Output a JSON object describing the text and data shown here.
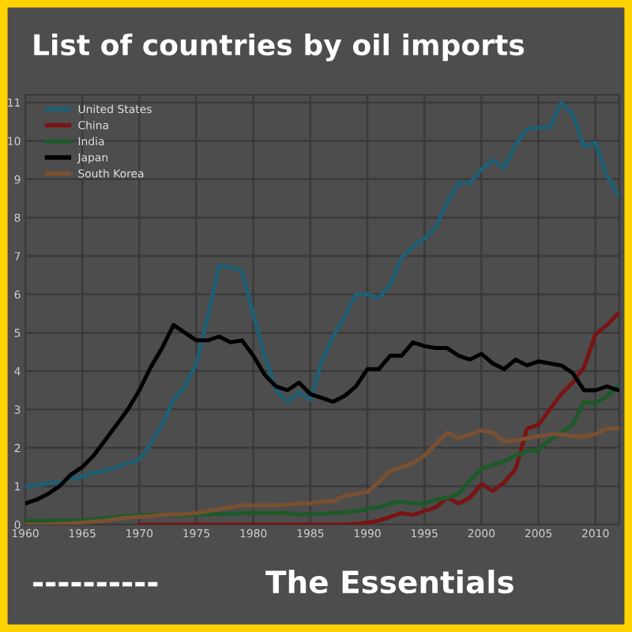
{
  "chart_data": {
    "type": "line",
    "annotations": [
      "List of countries by oil imports",
      "----------",
      "The Essentials"
    ],
    "x": [
      1960,
      1961,
      1962,
      1963,
      1964,
      1965,
      1966,
      1967,
      1968,
      1969,
      1970,
      1971,
      1972,
      1973,
      1974,
      1975,
      1976,
      1977,
      1978,
      1979,
      1980,
      1981,
      1982,
      1983,
      1984,
      1985,
      1986,
      1987,
      1988,
      1989,
      1990,
      1991,
      1992,
      1993,
      1994,
      1995,
      1996,
      1997,
      1998,
      1999,
      2000,
      2001,
      2002,
      2003,
      2004,
      2005,
      2006,
      2007,
      2008,
      2009,
      2010,
      2011,
      2012
    ],
    "series": [
      {
        "name": "United States",
        "color": "#1f5f74",
        "values": [
          1.0,
          1.02,
          1.08,
          1.1,
          1.2,
          1.25,
          1.35,
          1.4,
          1.5,
          1.6,
          1.7,
          2.1,
          2.6,
          3.25,
          3.6,
          4.2,
          5.4,
          6.75,
          6.7,
          6.6,
          5.5,
          4.4,
          3.5,
          3.2,
          3.45,
          3.25,
          4.25,
          4.9,
          5.4,
          6.0,
          6.0,
          5.9,
          6.25,
          6.95,
          7.25,
          7.45,
          7.75,
          8.4,
          8.9,
          8.9,
          9.25,
          9.5,
          9.3,
          9.9,
          10.3,
          10.35,
          10.35,
          11.0,
          10.7,
          9.85,
          9.95,
          9.1,
          8.6
        ]
      },
      {
        "name": "China",
        "color": "#7a1414",
        "values": [
          null,
          null,
          null,
          null,
          null,
          null,
          null,
          null,
          null,
          null,
          0,
          0,
          0,
          0,
          0,
          0,
          0,
          0,
          0,
          0,
          0,
          0,
          0,
          0,
          0,
          0,
          0,
          0,
          0,
          0.02,
          0.05,
          0.1,
          0.2,
          0.3,
          0.25,
          0.35,
          0.45,
          0.7,
          0.55,
          0.7,
          1.06,
          0.87,
          1.1,
          1.45,
          2.5,
          2.6,
          3.0,
          3.4,
          3.7,
          4.1,
          4.95,
          5.2,
          5.5
        ]
      },
      {
        "name": "India",
        "color": "#1d5a2a",
        "values": [
          0.1,
          0.1,
          0.1,
          0.11,
          0.11,
          0.12,
          0.14,
          0.17,
          0.2,
          0.22,
          0.25,
          0.25,
          0.25,
          0.25,
          0.25,
          0.25,
          0.27,
          0.27,
          0.28,
          0.3,
          0.3,
          0.3,
          0.3,
          0.3,
          0.25,
          0.28,
          0.28,
          0.3,
          0.32,
          0.35,
          0.4,
          0.45,
          0.55,
          0.6,
          0.55,
          0.55,
          0.65,
          0.7,
          0.8,
          1.15,
          1.45,
          1.55,
          1.65,
          1.8,
          1.9,
          1.95,
          2.2,
          2.4,
          2.6,
          3.2,
          3.15,
          3.35,
          3.6
        ]
      },
      {
        "name": "Japan",
        "color": "#000000",
        "values": [
          0.55,
          0.65,
          0.8,
          1.0,
          1.3,
          1.5,
          1.8,
          2.2,
          2.6,
          3.0,
          3.5,
          4.1,
          4.6,
          5.2,
          5.0,
          4.8,
          4.8,
          4.9,
          4.75,
          4.8,
          4.4,
          3.9,
          3.6,
          3.5,
          3.7,
          3.4,
          3.3,
          3.2,
          3.35,
          3.6,
          4.05,
          4.05,
          4.4,
          4.4,
          4.75,
          4.65,
          4.6,
          4.6,
          4.4,
          4.3,
          4.45,
          4.2,
          4.05,
          4.3,
          4.15,
          4.25,
          4.2,
          4.15,
          3.95,
          3.5,
          3.5,
          3.6,
          3.5
        ]
      },
      {
        "name": "South Korea",
        "color": "#7a5030",
        "values": [
          0,
          0,
          0,
          0.02,
          0.03,
          0.05,
          0.08,
          0.1,
          0.15,
          0.18,
          0.2,
          0.22,
          0.25,
          0.27,
          0.28,
          0.3,
          0.35,
          0.4,
          0.45,
          0.5,
          0.5,
          0.5,
          0.5,
          0.52,
          0.55,
          0.55,
          0.6,
          0.6,
          0.75,
          0.8,
          0.85,
          1.1,
          1.4,
          1.5,
          1.6,
          1.8,
          2.1,
          2.4,
          2.25,
          2.35,
          2.45,
          2.4,
          2.15,
          2.2,
          2.25,
          2.3,
          2.35,
          2.35,
          2.3,
          2.3,
          2.35,
          2.5,
          2.5
        ]
      }
    ],
    "xlim": [
      1960,
      2012.1
    ],
    "xticks": [
      1960,
      1965,
      1970,
      1975,
      1980,
      1985,
      1990,
      1995,
      2000,
      2005,
      2010
    ],
    "ylim": [
      0,
      11.2
    ],
    "yticks": [
      0,
      1,
      2,
      3,
      4,
      5,
      6,
      7,
      8,
      9,
      10,
      11
    ],
    "grid": true,
    "legend": "top left",
    "marker": "none",
    "line_style": "solid"
  }
}
